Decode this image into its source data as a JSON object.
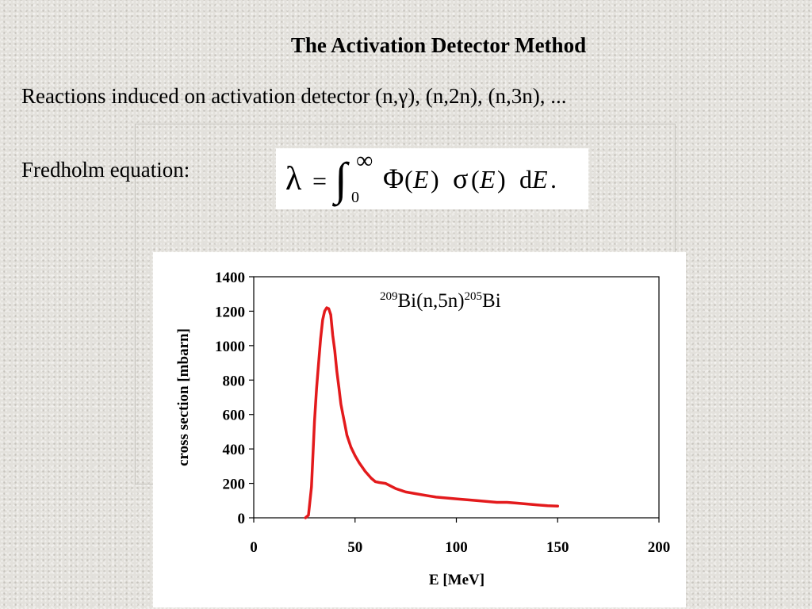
{
  "slide": {
    "title": "The Activation Detector Method",
    "reactions_line": "Reactions induced on activation detector  (n,γ), (n,2n), (n,3n), ...",
    "fredholm_label": "Fredholm equation:",
    "equation": {
      "lhs": "λ",
      "equals": "=",
      "integral": "∫",
      "lower_limit": "0",
      "upper_limit": "∞",
      "flux": "Φ",
      "cross_section": "σ",
      "variable": "E",
      "differential": "d",
      "open_paren": "(",
      "close_paren": ")",
      "end": "."
    }
  },
  "chart_data": {
    "type": "line",
    "annotation": {
      "mass_target": "209",
      "target": "Bi(n,5n)",
      "mass_product": "205",
      "product": "Bi"
    },
    "xlabel": "E [MeV]",
    "ylabel": "cross section [mbarn]",
    "xlim": [
      0,
      200
    ],
    "ylim": [
      0,
      1400
    ],
    "xticks": [
      "0",
      "50",
      "100",
      "150",
      "200"
    ],
    "yticks": [
      "0",
      "200",
      "400",
      "600",
      "800",
      "1000",
      "1200",
      "1400"
    ],
    "grid": false,
    "series_color": "#e31a1c",
    "series": [
      {
        "x": [
          25.5,
          27,
          28.5,
          30,
          31,
          32,
          33,
          34,
          35,
          36,
          37,
          38,
          39,
          40,
          41,
          42,
          43,
          44,
          45,
          46,
          48,
          50,
          52,
          55,
          58,
          60,
          62,
          65,
          70,
          75,
          80,
          85,
          90,
          100,
          110,
          120,
          125,
          130,
          135,
          140,
          145,
          150
        ],
        "y": [
          0,
          15,
          180,
          560,
          750,
          900,
          1040,
          1150,
          1200,
          1220,
          1215,
          1180,
          1060,
          970,
          850,
          760,
          660,
          600,
          540,
          480,
          410,
          360,
          320,
          270,
          230,
          210,
          205,
          200,
          170,
          150,
          140,
          130,
          120,
          110,
          100,
          90,
          90,
          85,
          80,
          75,
          70,
          68
        ]
      }
    ]
  }
}
